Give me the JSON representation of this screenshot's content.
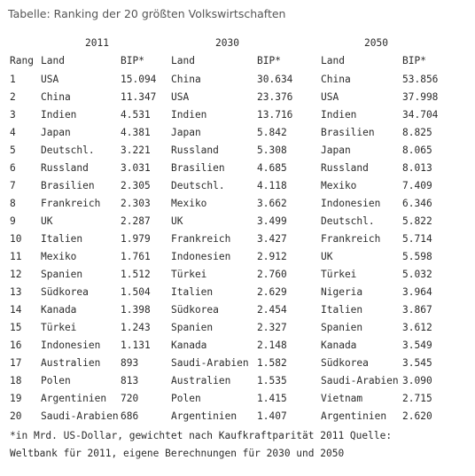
{
  "title": "Tabelle: Ranking der 20 größten Volkswirtschaften",
  "years": [
    "2011",
    "2030",
    "2050"
  ],
  "headers": {
    "rank": "Rang",
    "land": "Land",
    "bip": "BIP*"
  },
  "rows": [
    {
      "rank": "1",
      "land_2011": "USA",
      "bip_2011": "15.094",
      "land_2030": "China",
      "bip_2030": "30.634",
      "land_2050": "China",
      "bip_2050": "53.856"
    },
    {
      "rank": "2",
      "land_2011": "China",
      "bip_2011": "11.347",
      "land_2030": "USA",
      "bip_2030": "23.376",
      "land_2050": "USA",
      "bip_2050": "37.998"
    },
    {
      "rank": "3",
      "land_2011": "Indien",
      "bip_2011": "4.531",
      "land_2030": "Indien",
      "bip_2030": "13.716",
      "land_2050": "Indien",
      "bip_2050": "34.704"
    },
    {
      "rank": "4",
      "land_2011": "Japan",
      "bip_2011": "4.381",
      "land_2030": "Japan",
      "bip_2030": "5.842",
      "land_2050": "Brasilien",
      "bip_2050": "8.825"
    },
    {
      "rank": "5",
      "land_2011": "Deutschl.",
      "bip_2011": "3.221",
      "land_2030": "Russland",
      "bip_2030": "5.308",
      "land_2050": "Japan",
      "bip_2050": "8.065"
    },
    {
      "rank": "6",
      "land_2011": "Russland",
      "bip_2011": "3.031",
      "land_2030": "Brasilien",
      "bip_2030": "4.685",
      "land_2050": "Russland",
      "bip_2050": "8.013"
    },
    {
      "rank": "7",
      "land_2011": "Brasilien",
      "bip_2011": "2.305",
      "land_2030": "Deutschl.",
      "bip_2030": "4.118",
      "land_2050": "Mexiko",
      "bip_2050": "7.409"
    },
    {
      "rank": "8",
      "land_2011": "Frankreich",
      "bip_2011": "2.303",
      "land_2030": "Mexiko",
      "bip_2030": "3.662",
      "land_2050": "Indonesien",
      "bip_2050": "6.346"
    },
    {
      "rank": "9",
      "land_2011": "UK",
      "bip_2011": "2.287",
      "land_2030": "UK",
      "bip_2030": "3.499",
      "land_2050": "Deutschl.",
      "bip_2050": "5.822"
    },
    {
      "rank": "10",
      "land_2011": "Italien",
      "bip_2011": "1.979",
      "land_2030": "Frankreich",
      "bip_2030": "3.427",
      "land_2050": "Frankreich",
      "bip_2050": "5.714"
    },
    {
      "rank": "11",
      "land_2011": "Mexiko",
      "bip_2011": "1.761",
      "land_2030": "Indonesien",
      "bip_2030": "2.912",
      "land_2050": "UK",
      "bip_2050": "5.598"
    },
    {
      "rank": "12",
      "land_2011": "Spanien",
      "bip_2011": "1.512",
      "land_2030": "Türkei",
      "bip_2030": "2.760",
      "land_2050": "Türkei",
      "bip_2050": "5.032"
    },
    {
      "rank": "13",
      "land_2011": "Südkorea",
      "bip_2011": "1.504",
      "land_2030": "Italien",
      "bip_2030": "2.629",
      "land_2050": "Nigeria",
      "bip_2050": "3.964"
    },
    {
      "rank": "14",
      "land_2011": "Kanada",
      "bip_2011": "1.398",
      "land_2030": "Südkorea",
      "bip_2030": "2.454",
      "land_2050": "Italien",
      "bip_2050": "3.867"
    },
    {
      "rank": "15",
      "land_2011": "Türkei",
      "bip_2011": "1.243",
      "land_2030": "Spanien",
      "bip_2030": "2.327",
      "land_2050": "Spanien",
      "bip_2050": "3.612"
    },
    {
      "rank": "16",
      "land_2011": "Indonesien",
      "bip_2011": "1.131",
      "land_2030": "Kanada",
      "bip_2030": "2.148",
      "land_2050": "Kanada",
      "bip_2050": "3.549"
    },
    {
      "rank": "17",
      "land_2011": "Australien",
      "bip_2011": "893",
      "land_2030": "Saudi-Arabien",
      "bip_2030": "1.582",
      "land_2050": "Südkorea",
      "bip_2050": "3.545"
    },
    {
      "rank": "18",
      "land_2011": "Polen",
      "bip_2011": "813",
      "land_2030": "Australien",
      "bip_2030": "1.535",
      "land_2050": "Saudi-Arabien",
      "bip_2050": "3.090"
    },
    {
      "rank": "19",
      "land_2011": "Argentinien",
      "bip_2011": "720",
      "land_2030": "Polen",
      "bip_2030": "1.415",
      "land_2050": "Vietnam",
      "bip_2050": "2.715"
    },
    {
      "rank": "20",
      "land_2011": "Saudi-Arabien",
      "bip_2011": "686",
      "land_2030": "Argentinien",
      "bip_2030": "1.407",
      "land_2050": "Argentinien",
      "bip_2050": "2.620"
    }
  ],
  "footnote": {
    "line1": "*in Mrd. US-Dollar, gewichtet nach Kaufkraftparität 2011 Quelle:",
    "line2": "Weltbank für 2011, eigene Berechnungen für 2030 und 2050"
  }
}
